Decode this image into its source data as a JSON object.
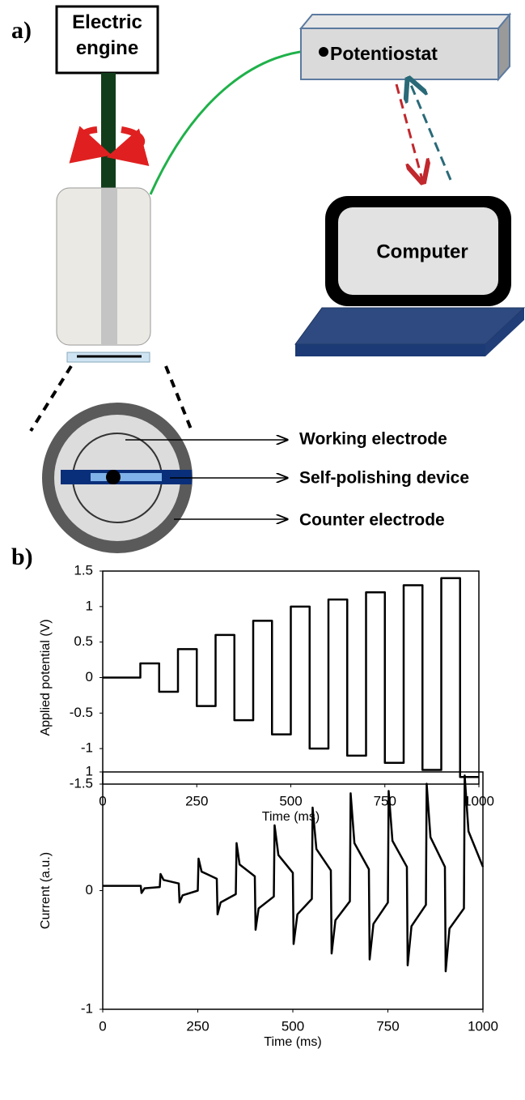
{
  "panel_a": {
    "label": "a)",
    "engine": "Electric engine",
    "potentiostat": "Potentiostat",
    "computer": "Computer",
    "parts": [
      "Working electrode",
      "Self-polishing device",
      "Counter electrode"
    ]
  },
  "panel_b": {
    "label": "b)"
  },
  "chart_data": [
    {
      "type": "line",
      "xlabel": "Time (ms)",
      "ylabel": "Applied potential (V)",
      "xlim": [
        0,
        1000
      ],
      "xticks": [
        0,
        250,
        500,
        750,
        1000
      ],
      "ylim": [
        -1.5,
        1.5
      ],
      "yticks": [
        -1.5,
        -1,
        -0.5,
        0,
        0.5,
        1,
        1.5
      ],
      "color": "#000000",
      "x": [
        0,
        100,
        100,
        150,
        150,
        200,
        200,
        250,
        250,
        300,
        300,
        350,
        350,
        400,
        400,
        450,
        450,
        500,
        500,
        550,
        550,
        600,
        600,
        650,
        650,
        700,
        700,
        750,
        750,
        800,
        800,
        850,
        850,
        900,
        900,
        950,
        950,
        1000
      ],
      "values": [
        0,
        0,
        0.2,
        0.2,
        -0.2,
        -0.2,
        0.4,
        0.4,
        -0.4,
        -0.4,
        0.6,
        0.6,
        -0.6,
        -0.6,
        0.8,
        0.8,
        -0.8,
        -0.8,
        1,
        1,
        -1,
        -1,
        1.1,
        1.1,
        -1.1,
        -1.1,
        1.2,
        1.2,
        -1.2,
        -1.2,
        1.3,
        1.3,
        -1.3,
        -1.3,
        1.4,
        1.4,
        -1.4,
        -1.4
      ]
    },
    {
      "type": "line",
      "xlabel": "Time (ms)",
      "ylabel": "Current (a.u.)",
      "xlim": [
        0,
        1000
      ],
      "xticks": [
        0,
        250,
        500,
        750,
        1000
      ],
      "ylim": [
        -1,
        1
      ],
      "yticks": [
        -1,
        0,
        1
      ],
      "color": "#000000",
      "x": [
        0,
        100,
        102,
        110,
        150,
        152,
        160,
        200,
        202,
        210,
        250,
        252,
        260,
        300,
        302,
        310,
        350,
        352,
        360,
        400,
        402,
        410,
        450,
        452,
        462,
        500,
        502,
        512,
        550,
        552,
        562,
        600,
        602,
        612,
        650,
        652,
        662,
        700,
        702,
        712,
        750,
        752,
        762,
        800,
        802,
        812,
        850,
        852,
        862,
        900,
        902,
        912,
        950,
        952,
        962,
        1000
      ],
      "values": [
        0.04,
        0.04,
        -0.02,
        0.02,
        0.03,
        0.14,
        0.09,
        0.06,
        -0.1,
        -0.04,
        0,
        0.27,
        0.16,
        0.1,
        -0.2,
        -0.1,
        -0.03,
        0.4,
        0.22,
        0.12,
        -0.33,
        -0.15,
        -0.05,
        0.55,
        0.3,
        0.15,
        -0.45,
        -0.2,
        -0.07,
        0.7,
        0.35,
        0.17,
        -0.53,
        -0.25,
        -0.09,
        0.82,
        0.4,
        0.18,
        -0.58,
        -0.28,
        -0.1,
        0.84,
        0.42,
        0.2,
        -0.63,
        -0.3,
        -0.12,
        0.9,
        0.45,
        0.2,
        -0.68,
        -0.32,
        -0.15,
        0.97,
        0.5,
        0.2
      ]
    }
  ]
}
